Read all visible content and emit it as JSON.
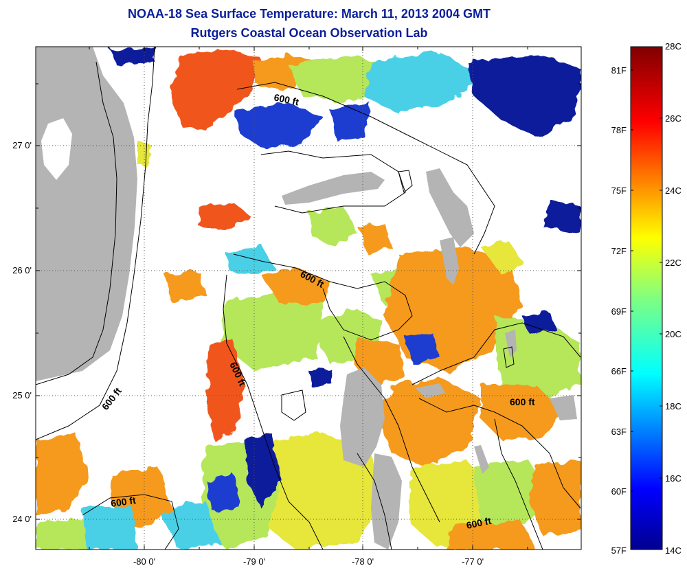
{
  "title": "NOAA-18 Sea Surface Temperature:  March 11, 2013 2004 GMT",
  "subtitle": "Rutgers Coastal Ocean Observation Lab",
  "map": {
    "lat_labels": [
      "27 0'",
      "26 0'",
      "25 0'",
      "24 0'"
    ],
    "lon_labels": [
      "-80 0'",
      "-79 0'",
      "-78 0'",
      "-77 0'"
    ],
    "contour_labels": [
      "600 ft",
      "600 ft",
      "600 ft",
      "600 ft",
      "600 ft",
      "600 ft"
    ],
    "colors": {
      "land": "#b4b4b4",
      "cloud": "#ffffff",
      "orange": "#f59a1c",
      "red_orange": "#f0561c",
      "yellow": "#e6e63a",
      "yellow_green": "#b6e65a",
      "cyan": "#4ad0e6",
      "blue": "#1a3ed0",
      "navy": "#0a1a9a"
    }
  },
  "colorbar": {
    "fahrenheit_labels": [
      "81F",
      "78F",
      "75F",
      "72F",
      "69F",
      "66F",
      "63F",
      "60F",
      "57F"
    ],
    "celsius_labels": [
      "28C",
      "26C",
      "24C",
      "22C",
      "20C",
      "18C",
      "16C",
      "14C"
    ]
  }
}
